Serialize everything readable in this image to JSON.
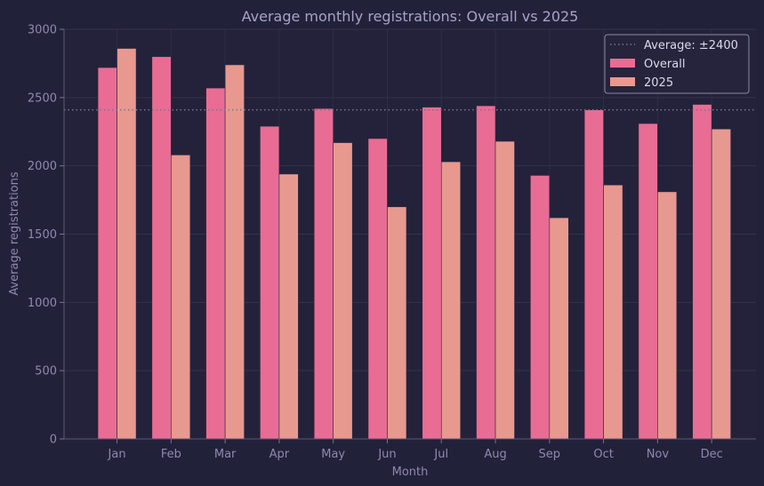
{
  "chart_data": {
    "type": "bar",
    "title": "Average monthly registrations: Overall vs 2025",
    "xlabel": "Month",
    "ylabel": "Average registrations",
    "categories": [
      "Jan",
      "Feb",
      "Mar",
      "Apr",
      "May",
      "Jun",
      "Jul",
      "Aug",
      "Sep",
      "Oct",
      "Nov",
      "Dec"
    ],
    "series": [
      {
        "name": "Overall",
        "color": "#e96c94",
        "values": [
          2720,
          2800,
          2570,
          2290,
          2420,
          2200,
          2430,
          2440,
          1930,
          2410,
          2310,
          2450
        ]
      },
      {
        "name": "2025",
        "color": "#e8998f",
        "values": [
          2860,
          2080,
          2740,
          1940,
          2170,
          1700,
          2030,
          2180,
          1620,
          1860,
          1810,
          2270
        ]
      }
    ],
    "reference_line": {
      "label": "Average: ±2400",
      "value": 2410,
      "style": "dotted",
      "color": "#77738f"
    },
    "ylim": [
      0,
      3000
    ],
    "yticks": [
      0,
      500,
      1000,
      1500,
      2000,
      2500,
      3000
    ],
    "grid": true,
    "legend_position": "top-right"
  }
}
